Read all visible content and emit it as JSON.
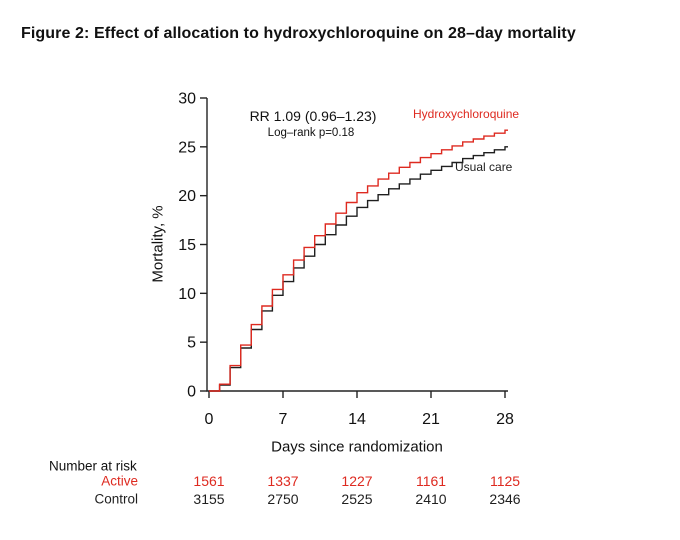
{
  "title": "Figure 2: Effect of allocation to hydroxychloroquine on 28–day mortality",
  "colors": {
    "active": "#de2a20",
    "control": "#1f1f1f",
    "axis": "#222222",
    "text": "#111111"
  },
  "chart_data": {
    "type": "line",
    "subtype": "kaplan-meier-step",
    "title": "",
    "xlabel": "Days since randomization",
    "ylabel": "Mortality, %",
    "xlim": [
      0,
      28
    ],
    "ylim": [
      0,
      30
    ],
    "x_ticks": [
      0,
      7,
      14,
      21,
      28
    ],
    "y_ticks": [
      0,
      5,
      10,
      15,
      20,
      25,
      30
    ],
    "grid": false,
    "legend_position": "inline-right",
    "annotation": {
      "rr": "RR 1.09 (0.96–1.23)",
      "logrank": "Log–rank p=0.18"
    },
    "x_days": [
      1,
      2,
      3,
      4,
      5,
      6,
      7,
      8,
      9,
      10,
      11,
      12,
      13,
      14,
      15,
      16,
      17,
      18,
      19,
      20,
      21,
      22,
      23,
      24,
      25,
      26,
      27,
      28
    ],
    "series": [
      {
        "id": "hydroxychloroquine",
        "name": "Hydroxychloroquine",
        "color": "#de2a20",
        "values": [
          0.7,
          2.6,
          4.7,
          6.8,
          8.7,
          10.4,
          11.9,
          13.4,
          14.7,
          15.9,
          17.1,
          18.2,
          19.3,
          20.3,
          21.0,
          21.7,
          22.3,
          22.9,
          23.4,
          23.9,
          24.3,
          24.7,
          25.1,
          25.5,
          25.8,
          26.1,
          26.4,
          26.7
        ]
      },
      {
        "id": "usual-care",
        "name": "Usual care",
        "color": "#1f1f1f",
        "values": [
          0.6,
          2.4,
          4.4,
          6.3,
          8.2,
          9.8,
          11.2,
          12.6,
          13.8,
          15.0,
          16.0,
          17.0,
          17.9,
          18.8,
          19.5,
          20.1,
          20.7,
          21.2,
          21.7,
          22.2,
          22.6,
          23.0,
          23.4,
          23.8,
          24.1,
          24.4,
          24.7,
          25.0
        ]
      }
    ]
  },
  "risk_table": {
    "label": "Number at risk",
    "columns_days": [
      0,
      7,
      14,
      21,
      28
    ],
    "rows": [
      {
        "id": "active",
        "name": "Active",
        "color": "#de2a20",
        "values": [
          "1561",
          "1337",
          "1227",
          "1161",
          "1125"
        ]
      },
      {
        "id": "control",
        "name": "Control",
        "color": "#1f1f1f",
        "values": [
          "3155",
          "2750",
          "2525",
          "2410",
          "2346"
        ]
      }
    ]
  }
}
